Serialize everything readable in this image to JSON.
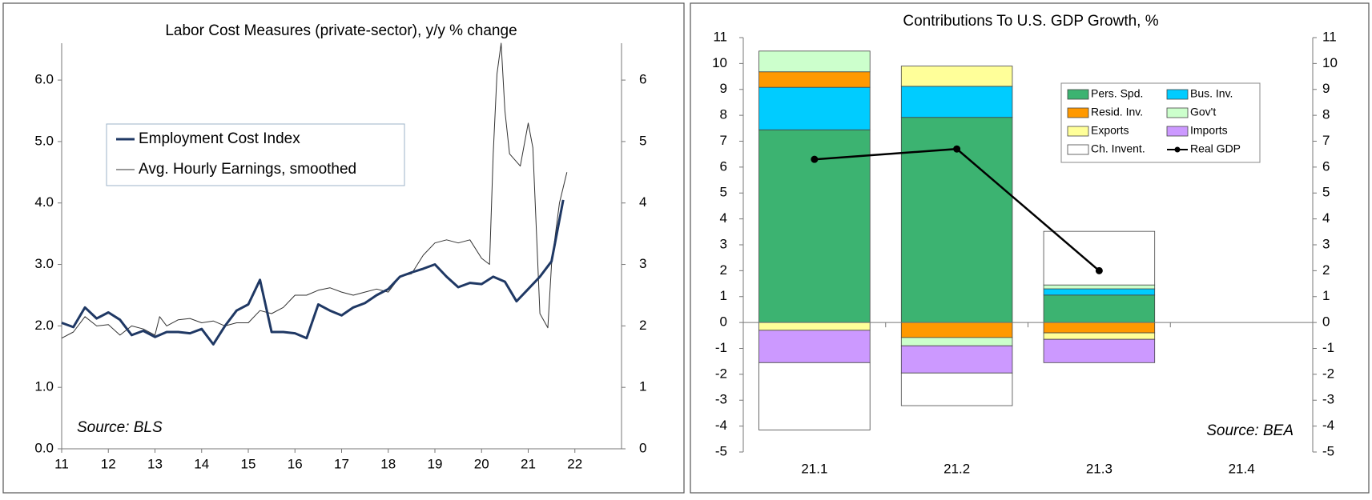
{
  "chart_data": [
    {
      "type": "line",
      "title": "Labor Cost Measures (private-sector), y/y % change",
      "annotation": "Source: BLS",
      "xlim": [
        11,
        23
      ],
      "xticks": [
        11,
        12,
        13,
        14,
        15,
        16,
        17,
        18,
        19,
        20,
        21,
        22
      ],
      "ylim": [
        0,
        6.6
      ],
      "yticks": [
        {
          "value": 0,
          "label": "0.0"
        },
        {
          "value": 1,
          "label": "1.0"
        },
        {
          "value": 2,
          "label": "2.0"
        },
        {
          "value": 3,
          "label": "3.0"
        },
        {
          "value": 4,
          "label": "4.0"
        },
        {
          "value": 5,
          "label": "5.0"
        },
        {
          "value": 6,
          "label": "6.0"
        }
      ],
      "y2lim": [
        0,
        6.6
      ],
      "y2ticks": [
        0,
        1,
        2,
        3,
        4,
        5,
        6
      ],
      "grid": false,
      "series": [
        {
          "name": "Employment Cost Index",
          "color": "#1f3864",
          "width": 3,
          "x": [
            11,
            11.25,
            11.5,
            11.75,
            12,
            12.25,
            12.5,
            12.75,
            13,
            13.25,
            13.5,
            13.75,
            14,
            14.25,
            14.5,
            14.75,
            15,
            15.25,
            15.5,
            15.75,
            16,
            16.25,
            16.5,
            16.75,
            17,
            17.25,
            17.5,
            17.75,
            18,
            18.25,
            18.5,
            18.75,
            19,
            19.25,
            19.5,
            19.75,
            20,
            20.25,
            20.5,
            20.75,
            21,
            21.25,
            21.5,
            21.75
          ],
          "values": [
            2.05,
            1.98,
            2.3,
            2.12,
            2.22,
            2.1,
            1.85,
            1.92,
            1.82,
            1.9,
            1.9,
            1.88,
            1.95,
            1.7,
            2.0,
            2.25,
            2.35,
            2.75,
            1.9,
            1.9,
            1.88,
            1.8,
            2.35,
            2.25,
            2.17,
            2.3,
            2.37,
            2.5,
            2.6,
            2.8,
            2.87,
            2.93,
            3.0,
            2.8,
            2.63,
            2.7,
            2.68,
            2.8,
            2.72,
            2.4,
            2.6,
            2.8,
            3.05,
            4.05
          ]
        },
        {
          "name": "Avg. Hourly Earnings, smoothed",
          "color": "#333333",
          "width": 1,
          "axis": "y2",
          "x": [
            11,
            11.25,
            11.5,
            11.75,
            12,
            12.25,
            12.5,
            12.75,
            13,
            13.1,
            13.25,
            13.5,
            13.75,
            14,
            14.25,
            14.5,
            14.75,
            15,
            15.25,
            15.5,
            15.75,
            16,
            16.25,
            16.5,
            16.75,
            17,
            17.25,
            17.5,
            17.75,
            18,
            18.25,
            18.5,
            18.75,
            19,
            19.25,
            19.5,
            19.75,
            20,
            20.17,
            20.25,
            20.33,
            20.42,
            20.5,
            20.6,
            20.83,
            21,
            21.1,
            21.25,
            21.42,
            21.5,
            21.67,
            21.83
          ],
          "values": [
            1.8,
            1.9,
            2.15,
            2.0,
            2.02,
            1.85,
            2.0,
            1.95,
            1.85,
            2.15,
            2.0,
            2.1,
            2.12,
            2.05,
            2.08,
            2.0,
            2.05,
            2.05,
            2.25,
            2.2,
            2.3,
            2.5,
            2.5,
            2.58,
            2.62,
            2.55,
            2.5,
            2.55,
            2.6,
            2.55,
            2.8,
            2.85,
            3.15,
            3.35,
            3.4,
            3.35,
            3.4,
            3.1,
            3.0,
            4.8,
            6.1,
            6.6,
            5.5,
            4.8,
            4.6,
            5.3,
            4.9,
            2.2,
            1.97,
            3.0,
            4.0,
            4.5
          ]
        }
      ]
    },
    {
      "type": "bar",
      "stacked": true,
      "title": "Contributions To U.S. GDP Growth, %",
      "annotation": "Source: BEA",
      "categories": [
        "21.1",
        "21.2",
        "21.3",
        "21.4"
      ],
      "ylim": [
        -5,
        11
      ],
      "yticks": [
        -5,
        -4,
        -3,
        -2,
        -1,
        0,
        1,
        2,
        3,
        4,
        5,
        6,
        7,
        8,
        9,
        10,
        11
      ],
      "y2lim": [
        -5,
        11
      ],
      "y2ticks": [
        -5,
        -4,
        -3,
        -2,
        -1,
        0,
        1,
        2,
        3,
        4,
        5,
        6,
        7,
        8,
        9,
        10,
        11
      ],
      "grid": false,
      "series": [
        {
          "name": "Pers. Spd.",
          "color": "#3cb371",
          "values": [
            7.44,
            7.92,
            1.06,
            null
          ]
        },
        {
          "name": "Bus. Inv.",
          "color": "#00ccff",
          "values": [
            1.64,
            1.2,
            0.24,
            null
          ]
        },
        {
          "name": "Resid. Inv.",
          "color": "#ff9900",
          "values": [
            0.6,
            -0.58,
            -0.4,
            null
          ]
        },
        {
          "name": "Gov't",
          "color": "#ccffcc",
          "values": [
            0.8,
            -0.32,
            0.15,
            null
          ]
        },
        {
          "name": "Exports",
          "color": "#ffff99",
          "values": [
            -0.3,
            0.78,
            -0.25,
            null
          ]
        },
        {
          "name": "Imports",
          "color": "#cc99ff",
          "values": [
            -1.25,
            -1.05,
            -0.9,
            null
          ]
        },
        {
          "name": "Ch. Invent.",
          "color": "#ffffff",
          "values": [
            -2.6,
            -1.26,
            2.07,
            null
          ]
        },
        {
          "name": "Real GDP",
          "color": "#000000",
          "type": "line",
          "values": [
            6.3,
            6.7,
            2.0,
            null
          ]
        }
      ]
    }
  ]
}
